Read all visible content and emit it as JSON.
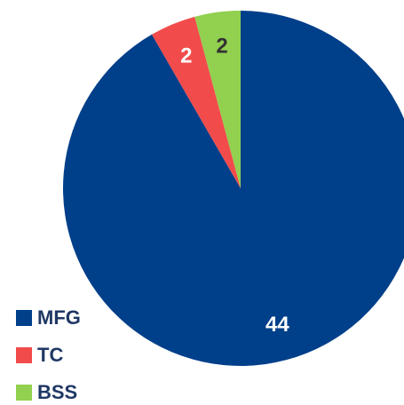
{
  "chart_data": {
    "type": "pie",
    "categories": [
      "MFG",
      "TC",
      "BSS"
    ],
    "values": [
      44,
      2,
      2
    ],
    "colors": [
      "#003f8a",
      "#f24b4b",
      "#92d050"
    ]
  }
}
